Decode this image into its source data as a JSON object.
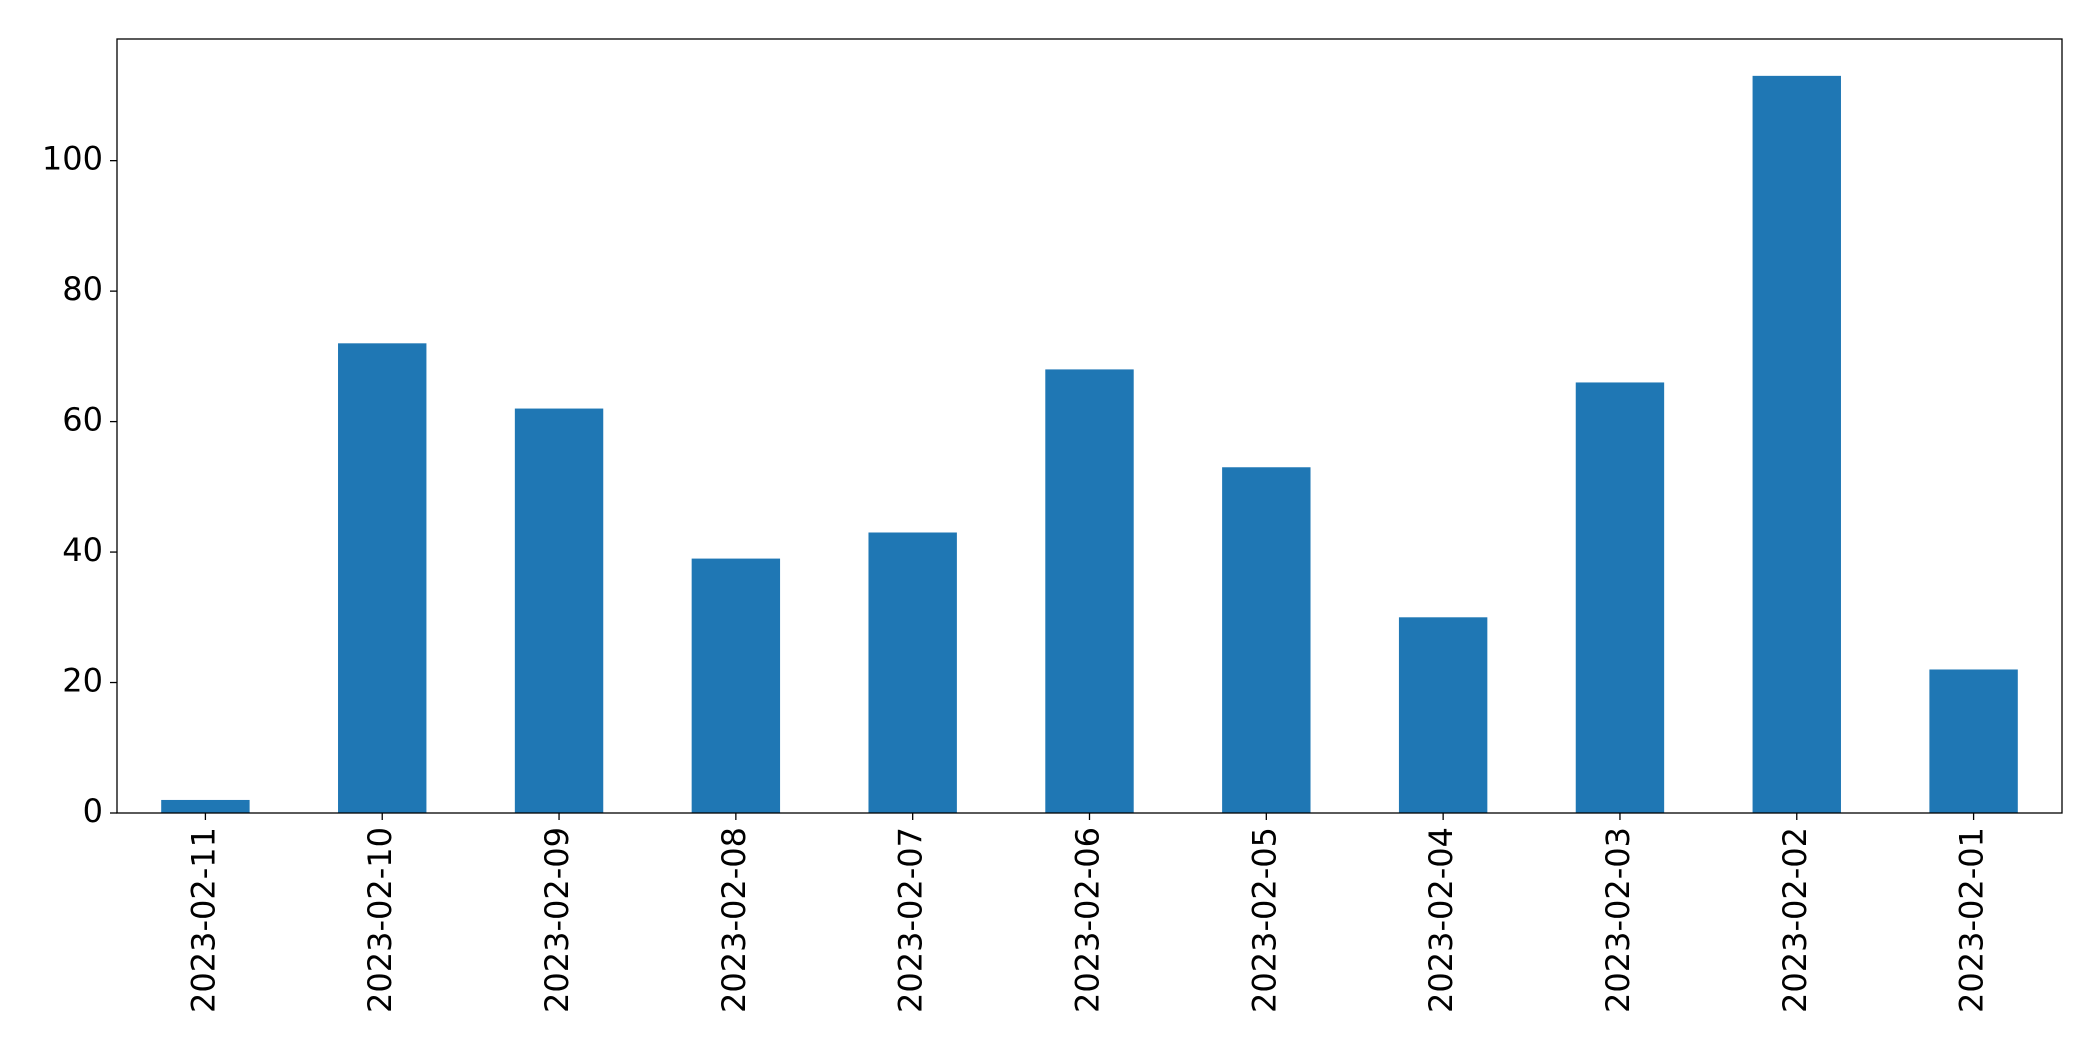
{
  "chart_data": {
    "type": "bar",
    "categories": [
      "2023-02-11",
      "2023-02-10",
      "2023-02-09",
      "2023-02-08",
      "2023-02-07",
      "2023-02-06",
      "2023-02-05",
      "2023-02-04",
      "2023-02-03",
      "2023-02-02",
      "2023-02-01"
    ],
    "values": [
      2,
      72,
      62,
      39,
      43,
      68,
      53,
      30,
      66,
      113,
      22
    ],
    "color": "#1f77b4",
    "ylim": [
      0,
      118.65
    ],
    "yticks": [
      0,
      20,
      40,
      60,
      80,
      100
    ],
    "grid": false
  }
}
